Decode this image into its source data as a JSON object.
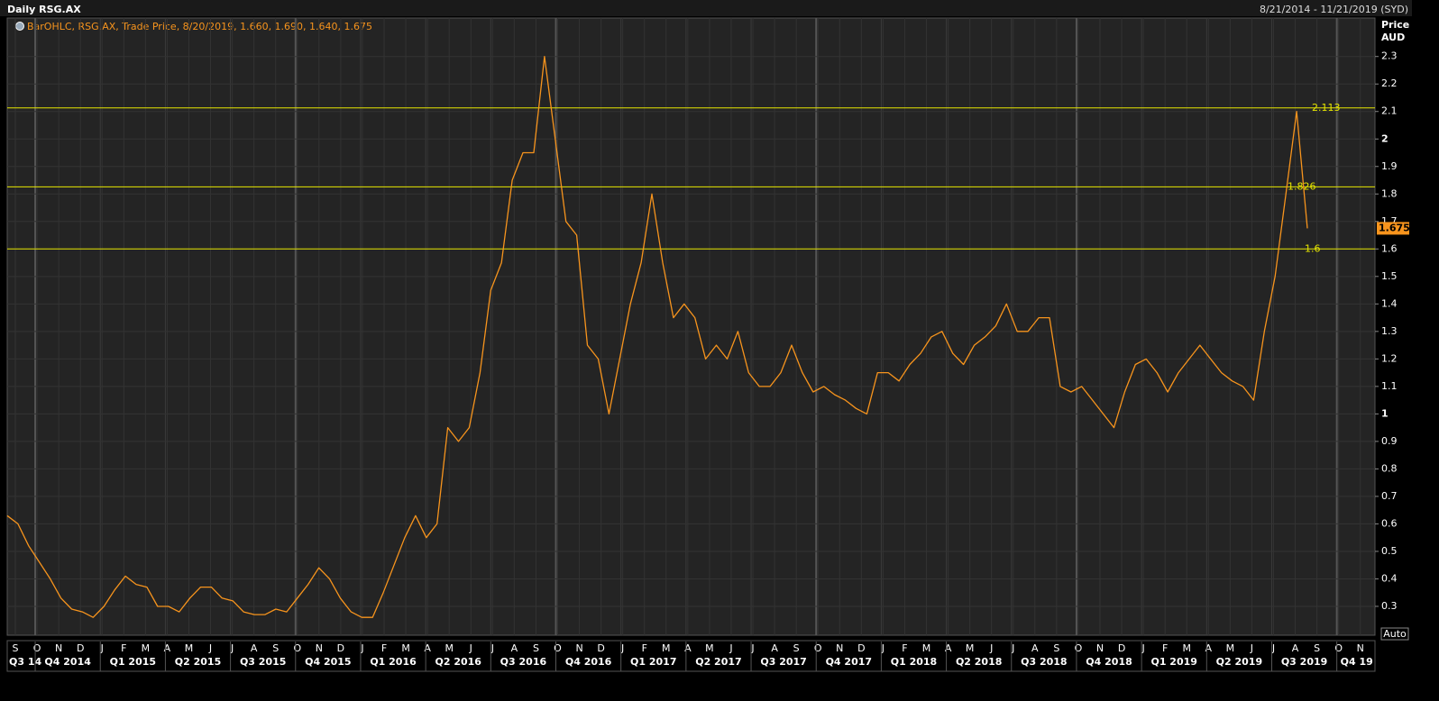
{
  "chart_data": {
    "type": "line",
    "title": "Daily RSG.AX",
    "date_range": "8/21/2014 - 11/21/2019 (SYD)",
    "legend": "BarOHLC, RSG.AX, Trade Price, 8/20/2019, 1.660, 1.690, 1.640, 1.675",
    "y_axis_label": "Price",
    "y_axis_unit": "AUD",
    "scale_mode": "Auto",
    "color": "#f7941d",
    "values": [
      0.63,
      0.6,
      0.52,
      0.46,
      0.4,
      0.33,
      0.29,
      0.28,
      0.26,
      0.3,
      0.36,
      0.41,
      0.38,
      0.37,
      0.3,
      0.3,
      0.28,
      0.33,
      0.37,
      0.37,
      0.33,
      0.32,
      0.28,
      0.27,
      0.27,
      0.29,
      0.28,
      0.33,
      0.38,
      0.44,
      0.4,
      0.33,
      0.28,
      0.26,
      0.26,
      0.35,
      0.45,
      0.55,
      0.63,
      0.55,
      0.6,
      0.95,
      0.9,
      0.95,
      1.15,
      1.45,
      1.55,
      1.85,
      1.95,
      1.95,
      2.3,
      2.0,
      1.7,
      1.65,
      1.25,
      1.2,
      1.0,
      1.2,
      1.4,
      1.55,
      1.8,
      1.55,
      1.35,
      1.4,
      1.35,
      1.2,
      1.25,
      1.2,
      1.3,
      1.15,
      1.1,
      1.1,
      1.15,
      1.25,
      1.15,
      1.08,
      1.1,
      1.07,
      1.05,
      1.02,
      1.0,
      1.15,
      1.15,
      1.12,
      1.18,
      1.22,
      1.28,
      1.3,
      1.22,
      1.18,
      1.25,
      1.28,
      1.32,
      1.4,
      1.3,
      1.3,
      1.35,
      1.35,
      1.1,
      1.08,
      1.1,
      1.05,
      1.0,
      0.95,
      1.08,
      1.18,
      1.2,
      1.15,
      1.08,
      1.15,
      1.2,
      1.25,
      1.2,
      1.15,
      1.12,
      1.1,
      1.05,
      1.3,
      1.5,
      1.8,
      2.1,
      1.675
    ],
    "last_price": 1.675,
    "reference_lines": [
      2.113,
      1.826,
      1.6
    ],
    "ylim": [
      0.195,
      2.44
    ],
    "yticks": [
      0.3,
      0.4,
      0.5,
      0.6,
      0.7,
      0.8,
      0.9,
      1,
      1.1,
      1.2,
      1.3,
      1.4,
      1.5,
      1.6,
      1.7,
      1.8,
      1.9,
      2,
      2.1,
      2.2,
      2.3
    ],
    "grid": true,
    "month_labels": [
      "S",
      "O",
      "N",
      "D",
      "J",
      "F",
      "M",
      "A",
      "M",
      "J",
      "J",
      "A",
      "S",
      "O",
      "N",
      "D",
      "J",
      "F",
      "M",
      "A",
      "M",
      "J",
      "J",
      "A",
      "S",
      "O",
      "N",
      "D",
      "J",
      "F",
      "M",
      "A",
      "M",
      "J",
      "J",
      "A",
      "S",
      "O",
      "N",
      "D",
      "J",
      "F",
      "M",
      "A",
      "M",
      "J",
      "J",
      "A",
      "S",
      "O",
      "N",
      "D",
      "J",
      "F",
      "M",
      "A",
      "M",
      "J",
      "J",
      "A",
      "S",
      "O",
      "N"
    ],
    "quarter_labels": [
      "Q3 14",
      "Q4 2014",
      "Q1 2015",
      "Q2 2015",
      "Q3 2015",
      "Q4 2015",
      "Q1 2016",
      "Q2 2016",
      "Q3 2016",
      "Q4 2016",
      "Q1 2017",
      "Q2 2017",
      "Q3 2017",
      "Q4 2017",
      "Q1 2018",
      "Q2 2018",
      "Q3 2018",
      "Q4 2018",
      "Q1 2019",
      "Q2 2019",
      "Q3 2019",
      "Q4 19"
    ]
  }
}
